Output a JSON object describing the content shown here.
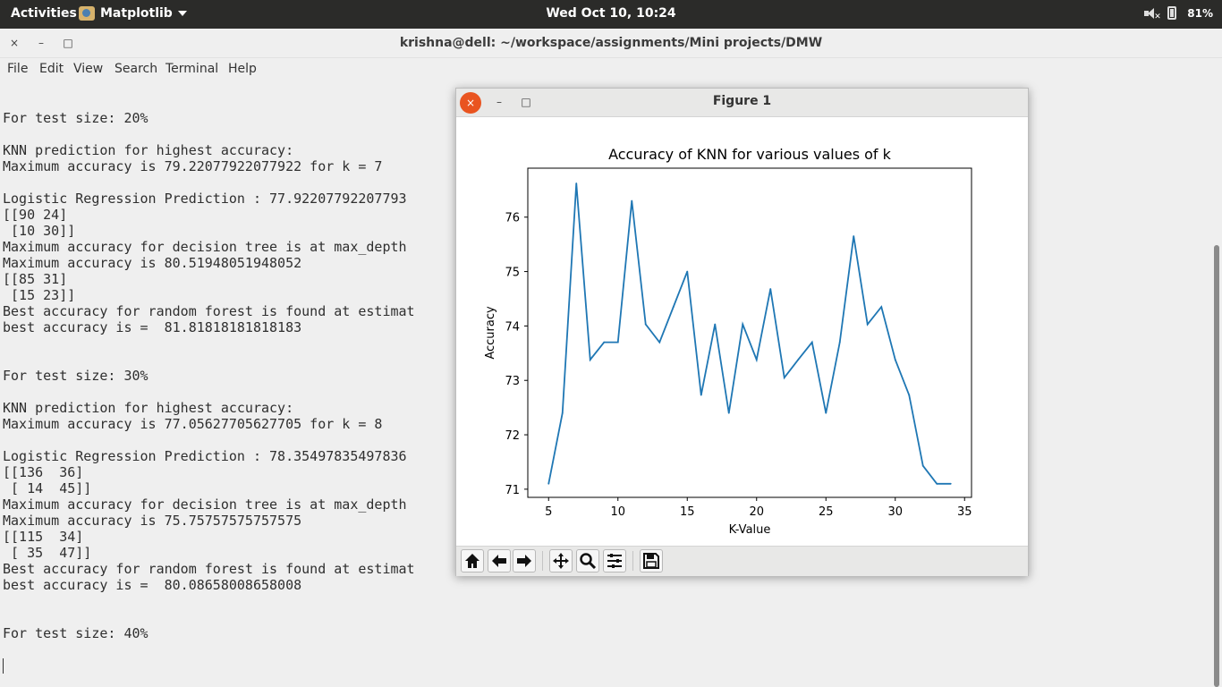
{
  "topbar": {
    "activities": "Activities",
    "app_name": "Matplotlib",
    "clock": "Wed Oct 10, 10:24",
    "battery": "81%"
  },
  "terminal": {
    "title": "krishna@dell: ~/workspace/assignments/Mini projects/DMW",
    "controls": {
      "close": "×",
      "minimize": "–",
      "maximize": "□"
    },
    "menu": [
      "File",
      "Edit",
      "View",
      "Search",
      "Terminal",
      "Help"
    ],
    "lines": [
      "For test size: 20%",
      "",
      "KNN prediction for highest accuracy:",
      "Maximum accuracy is 79.22077922077922 for k = 7",
      "",
      "Logistic Regression Prediction : 77.92207792207793",
      "[[90 24]",
      " [10 30]]",
      "Maximum accuracy for decision tree is at max_depth",
      "Maximum accuracy is 80.51948051948052",
      "[[85 31]",
      " [15 23]]",
      "Best accuracy for random forest is found at estimat",
      "best accuracy is =  81.81818181818183",
      "",
      "",
      "For test size: 30%",
      "",
      "KNN prediction for highest accuracy:",
      "Maximum accuracy is 77.05627705627705 for k = 8",
      "",
      "Logistic Regression Prediction : 78.35497835497836",
      "[[136  36]",
      " [ 14  45]]",
      "Maximum accuracy for decision tree is at max_depth",
      "Maximum accuracy is 75.75757575757575",
      "[[115  34]",
      " [ 35  47]]",
      "Best accuracy for random forest is found at estimat",
      "best accuracy is =  80.08658008658008",
      "",
      "",
      "For test size: 40%"
    ]
  },
  "figure": {
    "title": "Figure 1",
    "controls": {
      "close": "×",
      "minimize": "–",
      "maximize": "□"
    },
    "toolbar": [
      "home-icon",
      "back-arrow-icon",
      "forward-arrow-icon",
      "pan-icon",
      "zoom-icon",
      "subplots-icon",
      "save-icon"
    ]
  },
  "chart_data": {
    "type": "line",
    "title": "Accuracy of KNN for various values of k",
    "xlabel": "K-Value",
    "ylabel": "Accuracy",
    "xlim": [
      3.5,
      35.5
    ],
    "ylim": [
      70.85,
      76.9
    ],
    "xticks": [
      5,
      10,
      15,
      20,
      25,
      30,
      35
    ],
    "yticks": [
      71,
      72,
      73,
      74,
      75,
      76
    ],
    "color": "#1f77b4",
    "grid": false,
    "x": [
      5,
      6,
      7,
      8,
      9,
      10,
      11,
      12,
      13,
      14,
      15,
      16,
      17,
      18,
      19,
      20,
      21,
      22,
      23,
      24,
      25,
      26,
      27,
      28,
      29,
      30,
      31,
      32,
      33,
      34
    ],
    "y": [
      71.1,
      72.4,
      76.62,
      73.38,
      73.7,
      73.7,
      76.3,
      74.03,
      73.7,
      74.35,
      75.0,
      72.73,
      74.03,
      72.4,
      74.03,
      73.38,
      74.68,
      73.05,
      73.38,
      73.7,
      72.4,
      73.7,
      75.65,
      74.03,
      74.35,
      73.38,
      72.73,
      71.43,
      71.1,
      71.1
    ]
  }
}
